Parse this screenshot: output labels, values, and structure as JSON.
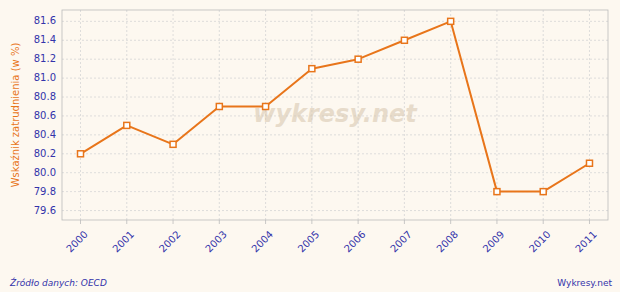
{
  "chart_data": {
    "type": "line",
    "x": [
      2000,
      2001,
      2002,
      2003,
      2004,
      2005,
      2006,
      2007,
      2008,
      2009,
      2010,
      2011
    ],
    "values": [
      80.2,
      80.5,
      80.3,
      80.7,
      80.7,
      81.1,
      81.2,
      81.4,
      81.6,
      79.8,
      79.8,
      80.1
    ],
    "color": "#e8751a",
    "marker": "square",
    "ylabel": "Wskaźnik zatrudnienia (w %)",
    "xlim": [
      1999.6,
      2011.4
    ],
    "xticks": [
      2000,
      2001,
      2002,
      2003,
      2004,
      2005,
      2006,
      2007,
      2008,
      2009,
      2010,
      2011
    ],
    "ylim": [
      79.5,
      81.72
    ],
    "yticks": [
      79.6,
      79.8,
      {
        "value": 80,
        "label": "80.0"
      },
      80.2,
      80.4,
      80.6,
      80.8,
      {
        "value": 81,
        "label": "81.0"
      },
      81.2,
      81.4,
      81.6
    ],
    "grid": true,
    "annotations": [
      "wykresy.net",
      "Źródło danych: OECD",
      "Wykresy.net"
    ]
  }
}
